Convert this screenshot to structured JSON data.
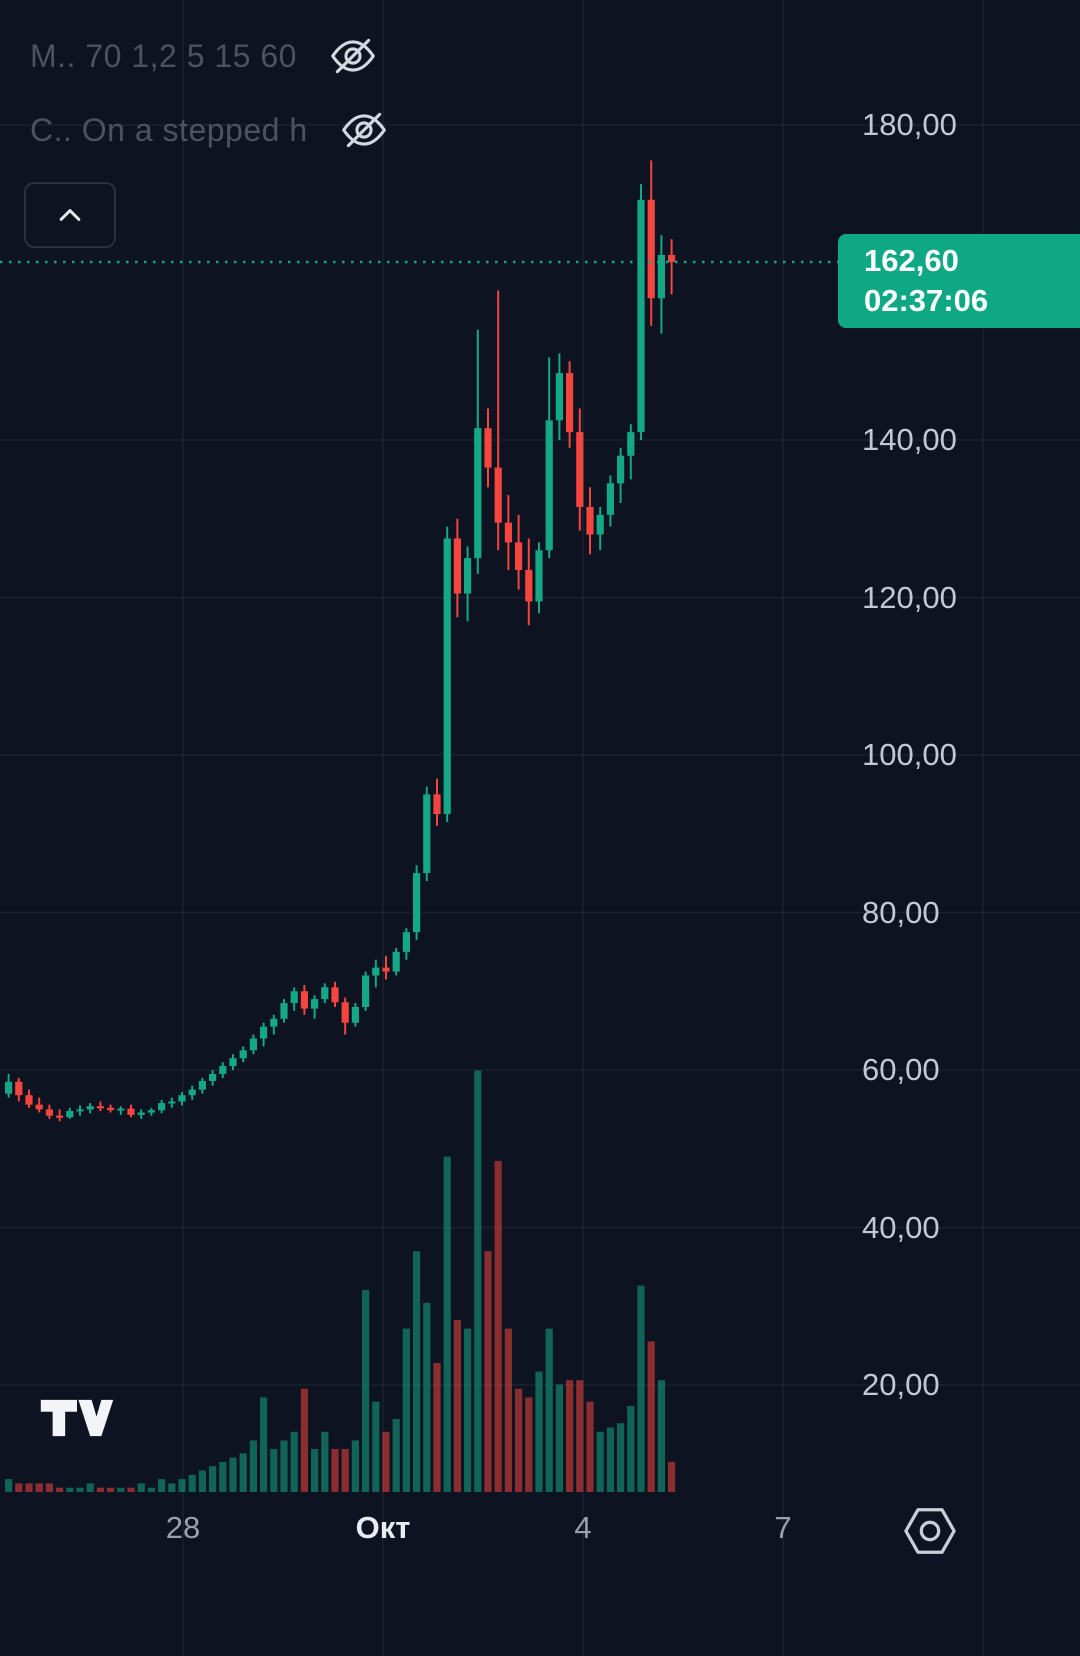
{
  "legend": {
    "row1_label": "M.. 70 1,2 5 15 60",
    "row2_label": "C.. On a stepped h",
    "visibility_icon": "eye-off"
  },
  "collapse_button": {
    "icon": "chevron-up"
  },
  "price_label": {
    "price": "162,60",
    "countdown": "02:37:06"
  },
  "colors": {
    "background": "#0d1321",
    "up": "#14a886",
    "down": "#f4453e",
    "accent": "#0fa884",
    "grid": "rgba(150,160,180,0.10)",
    "y_axis_text": "#c3c9d3",
    "x_axis_text": "#99a0ac",
    "x_axis_emphasis_text": "#e9ecf1",
    "legend_text": "#4b5362"
  },
  "chart_data": {
    "type": "candlestick",
    "subtype": "candlestick_with_volume",
    "current_price": 162.6,
    "current_price_display": "162,60",
    "bar_close_countdown": "02:37:06",
    "y_axis": {
      "ticks": [
        {
          "price": 180,
          "label": "180,00"
        },
        {
          "price": 140,
          "label": "140,00"
        },
        {
          "price": 120,
          "label": "120,00"
        },
        {
          "price": 100,
          "label": "100,00"
        },
        {
          "price": 80,
          "label": "80,00"
        },
        {
          "price": 60,
          "label": "60,00"
        },
        {
          "price": 40,
          "label": "40,00"
        },
        {
          "price": 20,
          "label": "20,00"
        }
      ]
    },
    "x_axis": {
      "labels": [
        {
          "text": "28",
          "emphasis": false
        },
        {
          "text": "Окт",
          "emphasis": true
        },
        {
          "text": "4",
          "emphasis": false
        },
        {
          "text": "7",
          "emphasis": false
        }
      ]
    },
    "columns": [
      "open",
      "high",
      "low",
      "close",
      "volume"
    ],
    "candles": [
      [
        57.0,
        59.5,
        56.5,
        58.5,
        3
      ],
      [
        58.5,
        59.0,
        56.0,
        56.8,
        2
      ],
      [
        56.8,
        57.5,
        55.2,
        55.6,
        2
      ],
      [
        55.6,
        56.5,
        54.6,
        55.0,
        2
      ],
      [
        55.0,
        55.6,
        53.8,
        54.2,
        2
      ],
      [
        54.2,
        55.0,
        53.5,
        54.0,
        1
      ],
      [
        54.0,
        55.2,
        53.8,
        54.8,
        1
      ],
      [
        54.8,
        55.5,
        54.2,
        55.0,
        1
      ],
      [
        55.0,
        55.8,
        54.5,
        55.4,
        2
      ],
      [
        55.4,
        56.0,
        54.8,
        55.2,
        1
      ],
      [
        55.2,
        55.6,
        54.6,
        54.9,
        1
      ],
      [
        54.9,
        55.4,
        54.3,
        55.1,
        1
      ],
      [
        55.1,
        55.6,
        54.0,
        54.3,
        1
      ],
      [
        54.3,
        55.0,
        53.8,
        54.6,
        2
      ],
      [
        54.6,
        55.2,
        54.2,
        54.9,
        1
      ],
      [
        54.9,
        56.2,
        54.5,
        55.8,
        3
      ],
      [
        55.8,
        56.5,
        55.2,
        56.0,
        2
      ],
      [
        56.0,
        57.2,
        55.5,
        56.8,
        3
      ],
      [
        56.8,
        58.0,
        56.2,
        57.5,
        4
      ],
      [
        57.5,
        59.0,
        57.0,
        58.6,
        5
      ],
      [
        58.6,
        60.0,
        58.0,
        59.5,
        6
      ],
      [
        59.5,
        61.0,
        59.0,
        60.5,
        7
      ],
      [
        60.5,
        62.0,
        60.0,
        61.5,
        8
      ],
      [
        61.5,
        63.0,
        61.0,
        62.5,
        9
      ],
      [
        62.5,
        64.5,
        62.0,
        64.0,
        12
      ],
      [
        64.0,
        66.0,
        63.0,
        65.5,
        22
      ],
      [
        65.5,
        67.0,
        64.5,
        66.5,
        10
      ],
      [
        66.5,
        69.0,
        66.0,
        68.5,
        12
      ],
      [
        68.5,
        70.5,
        67.5,
        70.0,
        14
      ],
      [
        70.0,
        70.8,
        67.0,
        67.8,
        24
      ],
      [
        67.8,
        69.5,
        66.5,
        69.0,
        10
      ],
      [
        69.0,
        71.0,
        68.5,
        70.5,
        14
      ],
      [
        70.5,
        71.2,
        68.0,
        68.6,
        10
      ],
      [
        68.6,
        69.2,
        64.5,
        66.0,
        10
      ],
      [
        66.0,
        68.5,
        65.5,
        68.0,
        12
      ],
      [
        68.0,
        72.5,
        67.5,
        72.0,
        47
      ],
      [
        72.0,
        74.0,
        70.5,
        73.0,
        21
      ],
      [
        73.0,
        74.5,
        71.5,
        72.5,
        14
      ],
      [
        72.5,
        75.5,
        72.0,
        75.0,
        17
      ],
      [
        75.0,
        78.0,
        74.0,
        77.5,
        38
      ],
      [
        77.5,
        86.0,
        76.5,
        85.0,
        56
      ],
      [
        85.0,
        96.0,
        84.0,
        95.0,
        44
      ],
      [
        95.0,
        97.0,
        91.0,
        92.5,
        30
      ],
      [
        92.5,
        129.0,
        91.5,
        127.5,
        78
      ],
      [
        127.5,
        130.0,
        117.5,
        120.5,
        40
      ],
      [
        120.5,
        126.5,
        117.0,
        125.0,
        38
      ],
      [
        125.0,
        154.0,
        123.0,
        141.5,
        98
      ],
      [
        141.5,
        144.0,
        134.0,
        136.5,
        56
      ],
      [
        136.5,
        159.0,
        126.0,
        129.5,
        77
      ],
      [
        129.5,
        133.0,
        123.5,
        127.0,
        38
      ],
      [
        127.0,
        130.5,
        121.0,
        123.5,
        24
      ],
      [
        123.5,
        127.5,
        116.5,
        119.5,
        22
      ],
      [
        119.5,
        127.0,
        118.0,
        126.0,
        28
      ],
      [
        126.0,
        150.5,
        125.0,
        142.5,
        38
      ],
      [
        142.5,
        151.0,
        140.0,
        148.5,
        25
      ],
      [
        148.5,
        150.0,
        139.0,
        141.0,
        26
      ],
      [
        141.0,
        144.0,
        128.5,
        131.5,
        26
      ],
      [
        131.5,
        134.0,
        125.5,
        128.0,
        21
      ],
      [
        128.0,
        131.5,
        126.0,
        130.5,
        14
      ],
      [
        130.5,
        135.5,
        129.0,
        134.5,
        15
      ],
      [
        134.5,
        139.0,
        132.0,
        138.0,
        16
      ],
      [
        138.0,
        142.0,
        135.0,
        141.0,
        20
      ],
      [
        141.0,
        172.5,
        140.0,
        170.5,
        48
      ],
      [
        170.5,
        175.5,
        154.5,
        158.0,
        35
      ],
      [
        158.0,
        166.0,
        153.5,
        163.5,
        26
      ],
      [
        163.5,
        165.5,
        158.5,
        162.6,
        7
      ]
    ]
  }
}
